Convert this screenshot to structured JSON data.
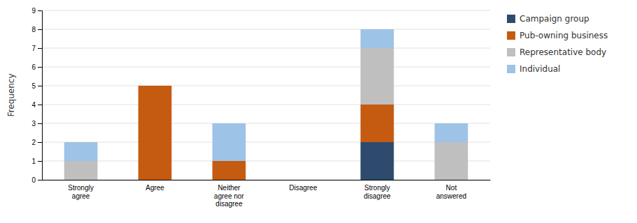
{
  "chart_data": {
    "type": "bar",
    "stacked": true,
    "ylabel": "Frequency",
    "categories": [
      "Strongly\nagree",
      "Agree",
      "Neither\nagree nor\ndisagree",
      "Disagree",
      "Strongly\ndisagree",
      "Not\nanswered"
    ],
    "series": [
      {
        "name": "Campaign group",
        "color": "#2e4b6e",
        "values": [
          0,
          0,
          0,
          0,
          2,
          0
        ]
      },
      {
        "name": "Pub-owning business",
        "color": "#c55a11",
        "values": [
          0,
          5,
          1,
          0,
          2,
          0
        ]
      },
      {
        "name": "Representative body",
        "color": "#bfbfbf",
        "values": [
          1,
          0,
          0,
          0,
          3,
          2
        ]
      },
      {
        "name": "Individual",
        "color": "#9dc3e6",
        "values": [
          1,
          0,
          2,
          0,
          1,
          1
        ]
      }
    ],
    "ylim": [
      0,
      9
    ],
    "yticks": [
      0,
      1,
      2,
      3,
      4,
      5,
      6,
      7,
      8,
      9
    ],
    "grid": true,
    "legend": "right"
  }
}
